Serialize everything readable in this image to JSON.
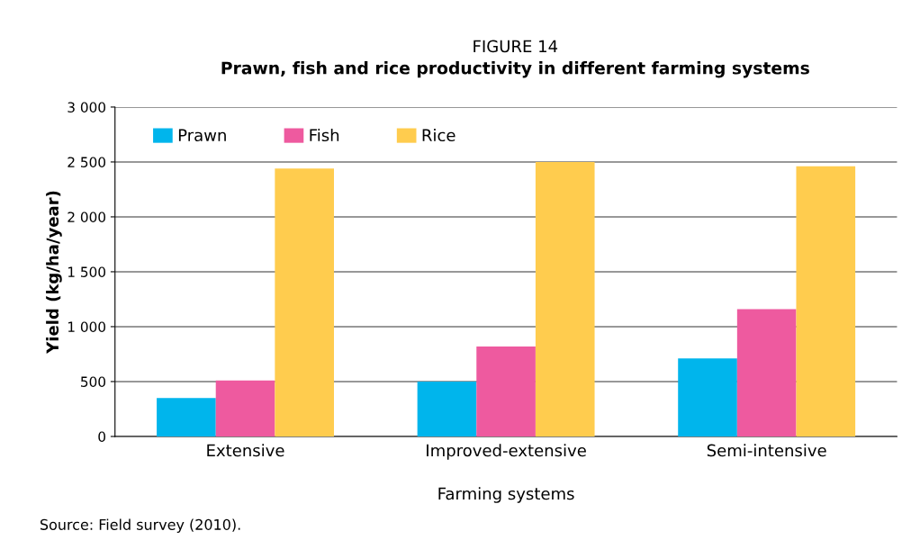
{
  "chart_data": {
    "type": "bar",
    "title": "FIGURE 14",
    "subtitle": "Prawn, fish and rice productivity in different farming systems",
    "xlabel": "Farming systems",
    "ylabel": "Yield (kg/ha/year)",
    "categories": [
      "Extensive",
      "Improved-extensive",
      "Semi-intensive"
    ],
    "series": [
      {
        "name": "Prawn",
        "color": "#00b5ec",
        "values": [
          350,
          500,
          710
        ]
      },
      {
        "name": "Fish",
        "color": "#ee5a9f",
        "values": [
          510,
          820,
          1160
        ]
      },
      {
        "name": "Rice",
        "color": "#ffcc4e",
        "values": [
          2440,
          2500,
          2460
        ]
      }
    ],
    "ylim": [
      0,
      3000
    ],
    "yticks": [
      0,
      500,
      {
        "value": 1000,
        "label": "1 000"
      },
      {
        "value": 1500,
        "label": "1 500"
      },
      {
        "value": 2000,
        "label": "2 000"
      },
      {
        "value": 2500,
        "label": "2 500"
      },
      {
        "value": 3000,
        "label": "3 000"
      }
    ],
    "grid": "y",
    "legend": "top left",
    "annotations": [
      "Source: Field survey (2010)."
    ]
  }
}
